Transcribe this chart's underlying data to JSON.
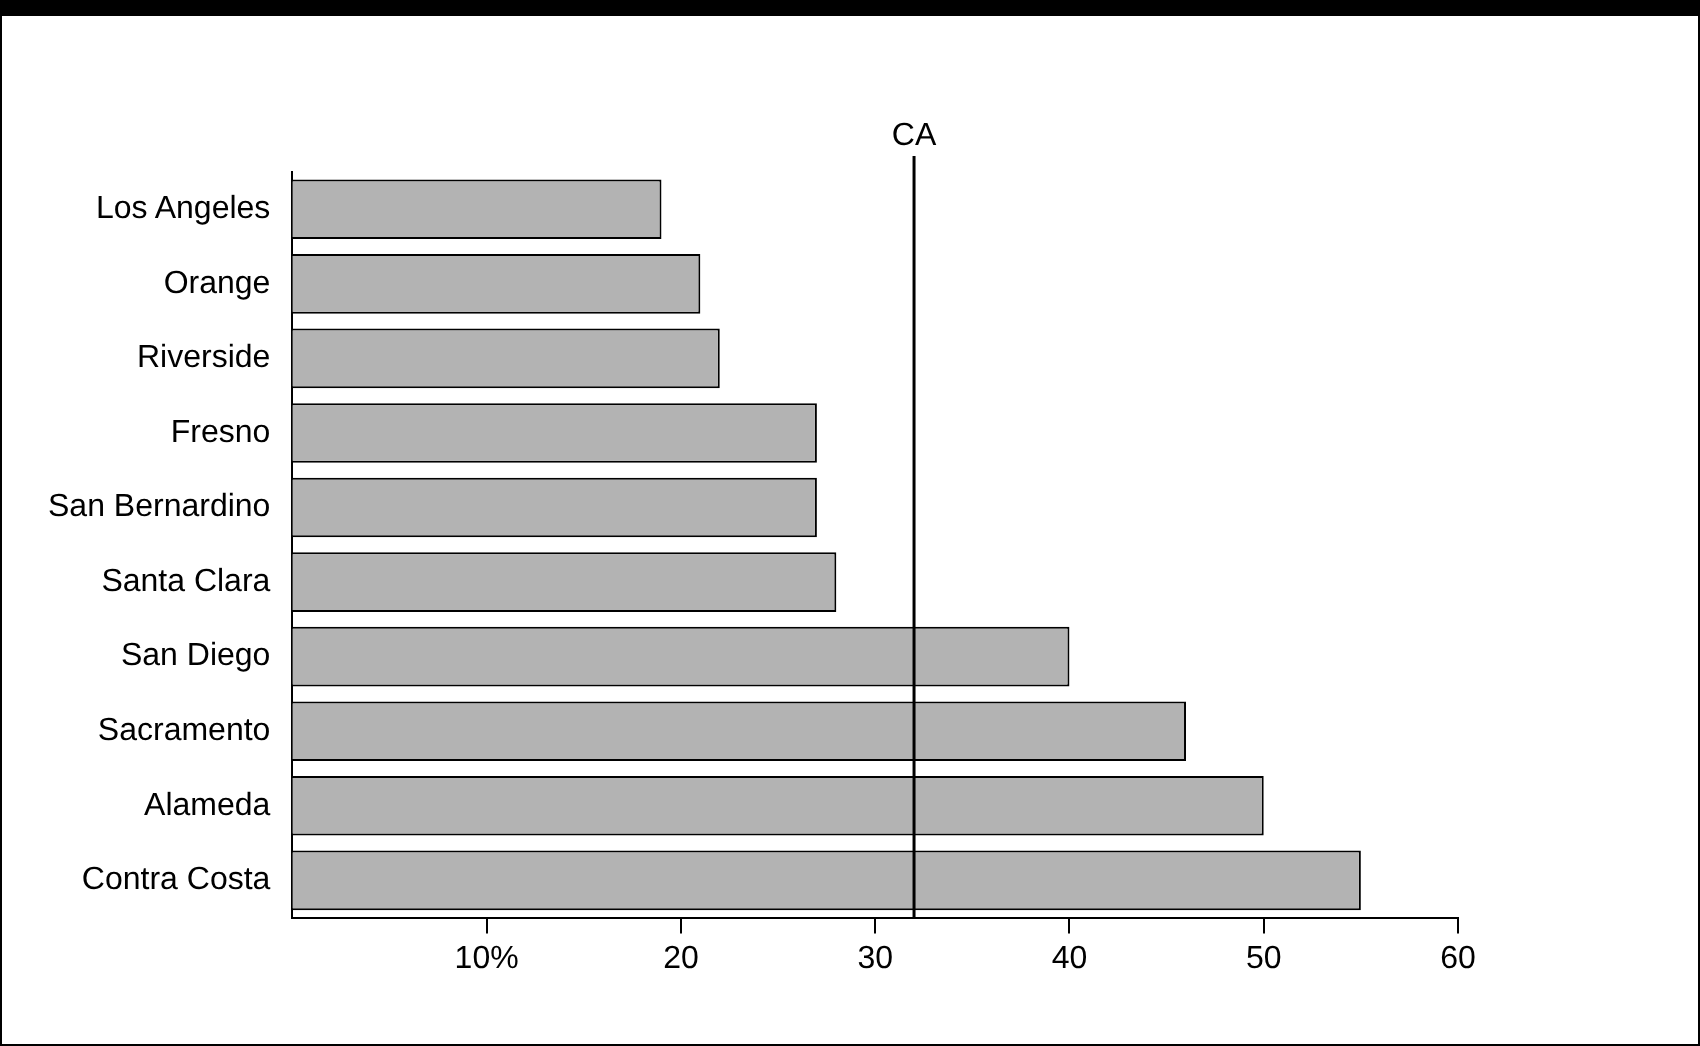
{
  "chart_data": {
    "type": "bar",
    "orientation": "horizontal",
    "categories": [
      "Los Angeles",
      "Orange",
      "Riverside",
      "Fresno",
      "San Bernardino",
      "Santa Clara",
      "San Diego",
      "Sacramento",
      "Alameda",
      "Contra Costa"
    ],
    "values": [
      19,
      21,
      22,
      27,
      27,
      28,
      40,
      46,
      50,
      55
    ],
    "color": "#b3b3b3",
    "xlim": [
      0,
      60
    ],
    "xticks": [
      {
        "value": 10,
        "label": "10%"
      },
      20,
      30,
      40,
      50,
      60
    ],
    "ref_lines": [
      {
        "axis": "x",
        "value": 32,
        "label": "CA",
        "color": "#000000"
      }
    ],
    "grid": false
  }
}
